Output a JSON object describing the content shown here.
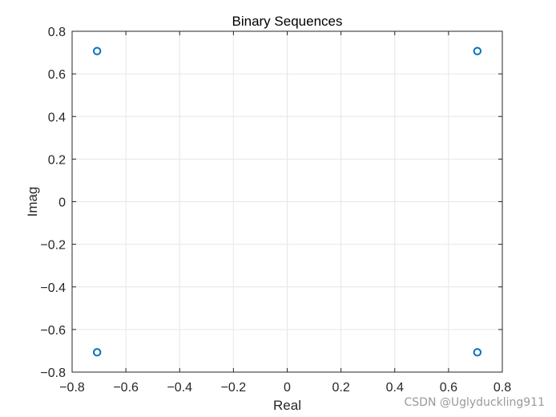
{
  "chart_data": {
    "type": "scatter",
    "title": "Binary Sequences",
    "xlabel": "Real",
    "ylabel": "Imag",
    "xlim": [
      -0.8,
      0.8
    ],
    "ylim": [
      -0.8,
      0.8
    ],
    "xticks": [
      -0.8,
      -0.6,
      -0.4,
      -0.2,
      0,
      0.2,
      0.4,
      0.6,
      0.8
    ],
    "yticks": [
      -0.8,
      -0.6,
      -0.4,
      -0.2,
      0,
      0.2,
      0.4,
      0.6,
      0.8
    ],
    "xtick_labels": [
      "−0.8",
      "−0.6",
      "−0.4",
      "−0.2",
      "0",
      "0.2",
      "0.4",
      "0.6",
      "0.8"
    ],
    "ytick_labels": [
      "−0.8",
      "−0.6",
      "−0.4",
      "−0.2",
      "0",
      "0.2",
      "0.4",
      "0.6",
      "0.8"
    ],
    "grid": true,
    "marker": "circle-open",
    "series": [
      {
        "points": [
          {
            "x": -0.7071,
            "y": 0.7071
          },
          {
            "x": 0.7071,
            "y": 0.7071
          },
          {
            "x": -0.7071,
            "y": -0.7071
          },
          {
            "x": 0.7071,
            "y": -0.7071
          }
        ]
      }
    ],
    "colors": {
      "marker": "#0072bd",
      "axes": "#262626",
      "grid": "#e6e6e6",
      "text": "#262626"
    }
  },
  "watermark": "CSDN @Uglyduckling911"
}
